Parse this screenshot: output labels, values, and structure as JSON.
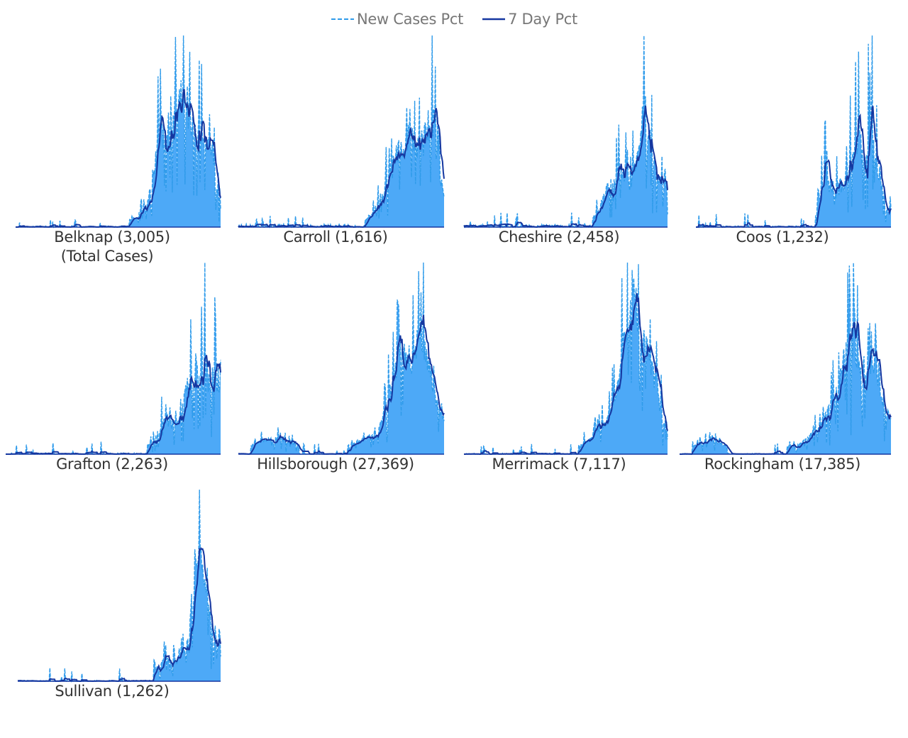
{
  "legend": {
    "new_cases_label": "New Cases Pct",
    "seven_day_label": "7 Day Pct"
  },
  "colors": {
    "area_fill": "#4da9f7",
    "new_cases_line": "#2f9bea",
    "seven_day_line": "#1537a0"
  },
  "chart_data": {
    "type": "area",
    "subtype": "small-multiples",
    "series_legend": [
      "New Cases Pct",
      "7 Day Pct"
    ],
    "legend_position": "top-center",
    "axes_visible": false,
    "grid": false,
    "note_label": "(Total Cases)",
    "panels": [
      {
        "county": "Belknap",
        "label": "Belknap (3,005)",
        "total_cases": 3005,
        "profile": {
          "base": 0.004,
          "noise": 0.18,
          "spikes": 0.55,
          "seed": 11,
          "shape": [
            [
              0.0,
              0.02
            ],
            [
              0.5,
              0.02
            ],
            [
              0.58,
              0.05
            ],
            [
              0.64,
              0.12
            ],
            [
              0.7,
              0.5
            ],
            [
              0.76,
              0.66
            ],
            [
              0.82,
              0.78
            ],
            [
              0.87,
              0.58
            ],
            [
              0.91,
              0.52
            ],
            [
              0.95,
              0.46
            ],
            [
              0.98,
              0.22
            ],
            [
              1.0,
              0.12
            ]
          ]
        }
      },
      {
        "county": "Carroll",
        "label": "Carroll (1,616)",
        "total_cases": 1616,
        "profile": {
          "base": 0.008,
          "noise": 0.2,
          "spikes": 0.5,
          "seed": 23,
          "shape": [
            [
              0.0,
              0.03
            ],
            [
              0.6,
              0.03
            ],
            [
              0.66,
              0.07
            ],
            [
              0.74,
              0.25
            ],
            [
              0.78,
              0.38
            ],
            [
              0.82,
              0.44
            ],
            [
              0.86,
              0.37
            ],
            [
              0.9,
              0.42
            ],
            [
              0.94,
              0.55
            ],
            [
              0.98,
              0.25
            ],
            [
              1.0,
              0.12
            ]
          ]
        }
      },
      {
        "county": "Cheshire",
        "label": "Cheshire (2,458)",
        "total_cases": 2458,
        "profile": {
          "base": 0.005,
          "noise": 0.2,
          "spikes": 0.6,
          "seed": 37,
          "shape": [
            [
              0.0,
              0.01
            ],
            [
              0.6,
              0.02
            ],
            [
              0.66,
              0.06
            ],
            [
              0.72,
              0.18
            ],
            [
              0.78,
              0.22
            ],
            [
              0.82,
              0.16
            ],
            [
              0.86,
              0.3
            ],
            [
              0.89,
              0.52
            ],
            [
              0.93,
              0.25
            ],
            [
              0.97,
              0.16
            ],
            [
              1.0,
              0.15
            ]
          ]
        }
      },
      {
        "county": "Coos",
        "label": "Coos (1,232)",
        "total_cases": 1232,
        "profile": {
          "base": 0.002,
          "noise": 0.22,
          "spikes": 0.75,
          "seed": 53,
          "shape": [
            [
              0.0,
              0.0
            ],
            [
              0.6,
              0.0
            ],
            [
              0.62,
              0.06
            ],
            [
              0.66,
              0.17
            ],
            [
              0.72,
              0.12
            ],
            [
              0.78,
              0.18
            ],
            [
              0.82,
              0.3
            ],
            [
              0.86,
              0.25
            ],
            [
              0.9,
              0.32
            ],
            [
              0.94,
              0.18
            ],
            [
              0.97,
              0.06
            ],
            [
              1.0,
              0.06
            ]
          ]
        }
      },
      {
        "county": "Grafton",
        "label": "Grafton (2,263)",
        "total_cases": 2263,
        "profile": {
          "base": 0.003,
          "noise": 0.2,
          "spikes": 0.6,
          "seed": 67,
          "shape": [
            [
              0.0,
              0.02
            ],
            [
              0.6,
              0.01
            ],
            [
              0.68,
              0.05
            ],
            [
              0.74,
              0.16
            ],
            [
              0.8,
              0.12
            ],
            [
              0.84,
              0.28
            ],
            [
              0.88,
              0.38
            ],
            [
              0.92,
              0.46
            ],
            [
              0.95,
              0.3
            ],
            [
              0.98,
              0.38
            ],
            [
              1.0,
              0.25
            ]
          ]
        }
      },
      {
        "county": "Hillsborough",
        "label": "Hillsborough (27,369)",
        "total_cases": 27369,
        "profile": {
          "base": 0.002,
          "noise": 0.14,
          "spikes": 0.45,
          "seed": 79,
          "shape": [
            [
              0.0,
              0.01
            ],
            [
              0.08,
              0.05
            ],
            [
              0.18,
              0.08
            ],
            [
              0.25,
              0.06
            ],
            [
              0.32,
              0.03
            ],
            [
              0.48,
              0.02
            ],
            [
              0.58,
              0.06
            ],
            [
              0.68,
              0.1
            ],
            [
              0.76,
              0.38
            ],
            [
              0.8,
              0.52
            ],
            [
              0.84,
              0.44
            ],
            [
              0.88,
              0.56
            ],
            [
              0.92,
              0.46
            ],
            [
              0.96,
              0.25
            ],
            [
              1.0,
              0.16
            ]
          ]
        }
      },
      {
        "county": "Merrimack",
        "label": "Merrimack (7,117)",
        "total_cases": 7117,
        "profile": {
          "base": 0.002,
          "noise": 0.14,
          "spikes": 0.5,
          "seed": 91,
          "shape": [
            [
              0.0,
              0.01
            ],
            [
              0.12,
              0.03
            ],
            [
              0.2,
              0.02
            ],
            [
              0.5,
              0.02
            ],
            [
              0.62,
              0.06
            ],
            [
              0.7,
              0.14
            ],
            [
              0.76,
              0.3
            ],
            [
              0.8,
              0.56
            ],
            [
              0.83,
              0.72
            ],
            [
              0.86,
              0.56
            ],
            [
              0.9,
              0.46
            ],
            [
              0.94,
              0.3
            ],
            [
              0.98,
              0.14
            ],
            [
              1.0,
              0.12
            ]
          ]
        }
      },
      {
        "county": "Rockingham",
        "label": "Rockingham (17,385)",
        "total_cases": 17385,
        "profile": {
          "base": 0.002,
          "noise": 0.14,
          "spikes": 0.45,
          "seed": 103,
          "shape": [
            [
              0.0,
              0.01
            ],
            [
              0.08,
              0.05
            ],
            [
              0.16,
              0.08
            ],
            [
              0.24,
              0.03
            ],
            [
              0.4,
              0.02
            ],
            [
              0.56,
              0.05
            ],
            [
              0.66,
              0.14
            ],
            [
              0.74,
              0.32
            ],
            [
              0.8,
              0.68
            ],
            [
              0.84,
              0.52
            ],
            [
              0.88,
              0.5
            ],
            [
              0.92,
              0.52
            ],
            [
              0.96,
              0.26
            ],
            [
              1.0,
              0.22
            ]
          ]
        }
      },
      {
        "county": "Sullivan",
        "label": "Sullivan (1,262)",
        "total_cases": 1262,
        "profile": {
          "base": 0.002,
          "noise": 0.2,
          "spikes": 0.55,
          "seed": 127,
          "shape": [
            [
              0.0,
              0.0
            ],
            [
              0.62,
              0.0
            ],
            [
              0.68,
              0.05
            ],
            [
              0.72,
              0.08
            ],
            [
              0.78,
              0.08
            ],
            [
              0.84,
              0.14
            ],
            [
              0.88,
              0.5
            ],
            [
              0.91,
              0.42
            ],
            [
              0.94,
              0.3
            ],
            [
              0.98,
              0.16
            ],
            [
              1.0,
              0.12
            ]
          ]
        }
      }
    ]
  }
}
